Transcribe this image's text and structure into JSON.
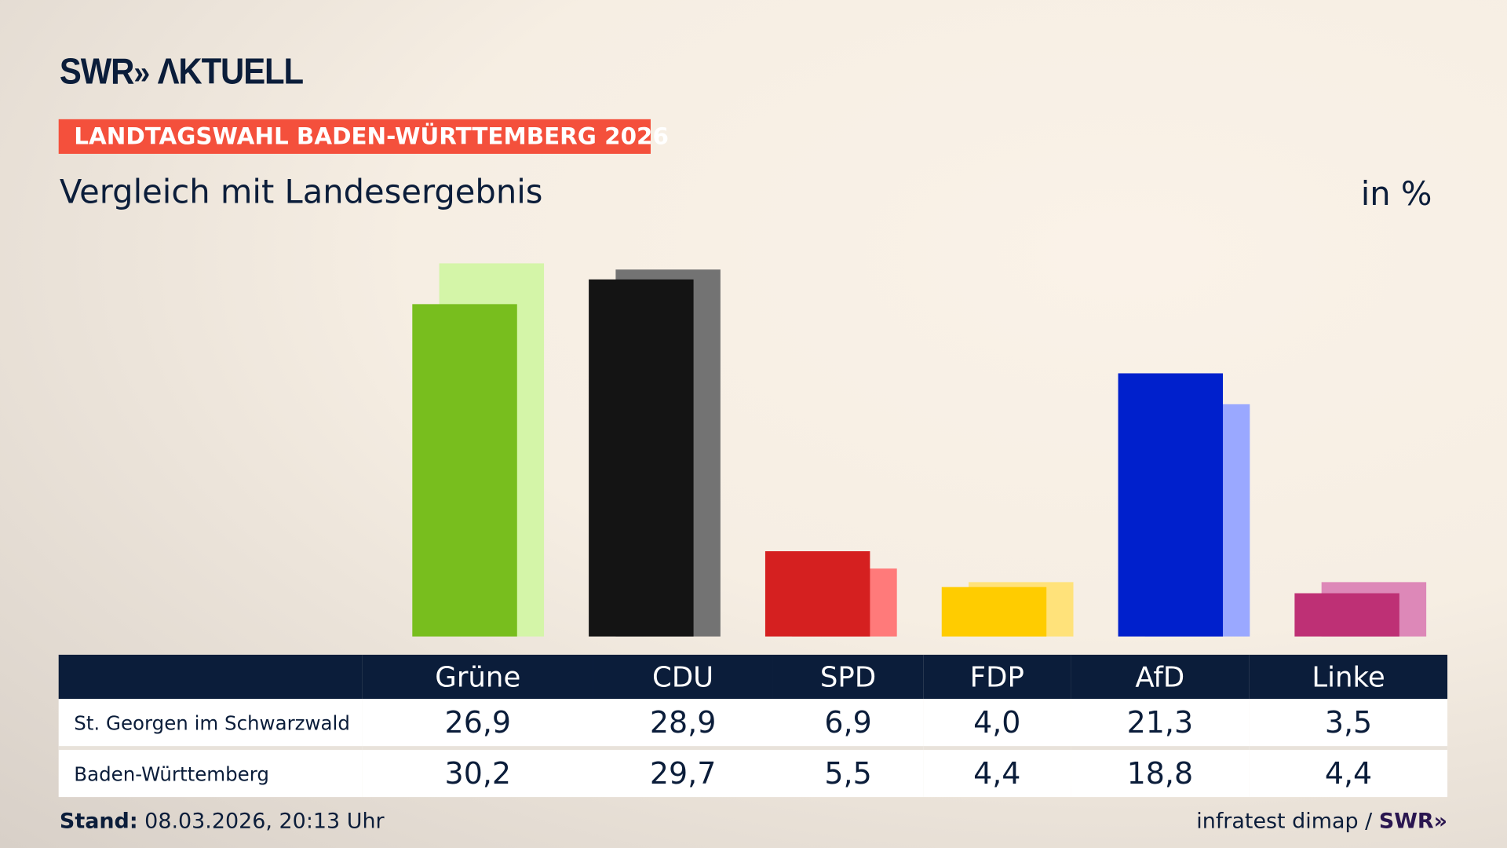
{
  "header": {
    "logo": "SWR» AKTUELL",
    "badge": "LANDTAGSWAHL BADEN-WÜRTTEMBERG 2026",
    "subtitle": "Vergleich mit Landesergebnis",
    "unit": "in %"
  },
  "footer": {
    "stand_label": "Stand:",
    "stand_value": " 08.03.2026, 20:13 Uhr",
    "source": "infratest dimap / ",
    "source_logo": "SWR»"
  },
  "chart_data": {
    "type": "bar",
    "categories": [
      "Grüne",
      "CDU",
      "SPD",
      "FDP",
      "AfD",
      "Linke"
    ],
    "series": [
      {
        "name": "St. Georgen im Schwarzwald",
        "values": [
          26.9,
          28.9,
          6.9,
          4.0,
          21.3,
          3.5
        ],
        "colors": [
          "#78be1e",
          "#141414",
          "#d52020",
          "#ffcc00",
          "#0020cc",
          "#be3075"
        ]
      },
      {
        "name": "Baden-Württemberg",
        "values": [
          30.2,
          29.7,
          5.5,
          4.4,
          18.8,
          4.4
        ],
        "colors": [
          "#d4f5a8",
          "#737373",
          "#ff7a7a",
          "#ffe27a",
          "#9aa8ff",
          "#dd88b8"
        ]
      }
    ],
    "value_labels": [
      [
        "26,9",
        "28,9",
        "6,9",
        "4,0",
        "21,3",
        "3,5"
      ],
      [
        "30,2",
        "29,7",
        "5,5",
        "4,4",
        "18,8",
        "4,4"
      ]
    ],
    "grid": false
  }
}
